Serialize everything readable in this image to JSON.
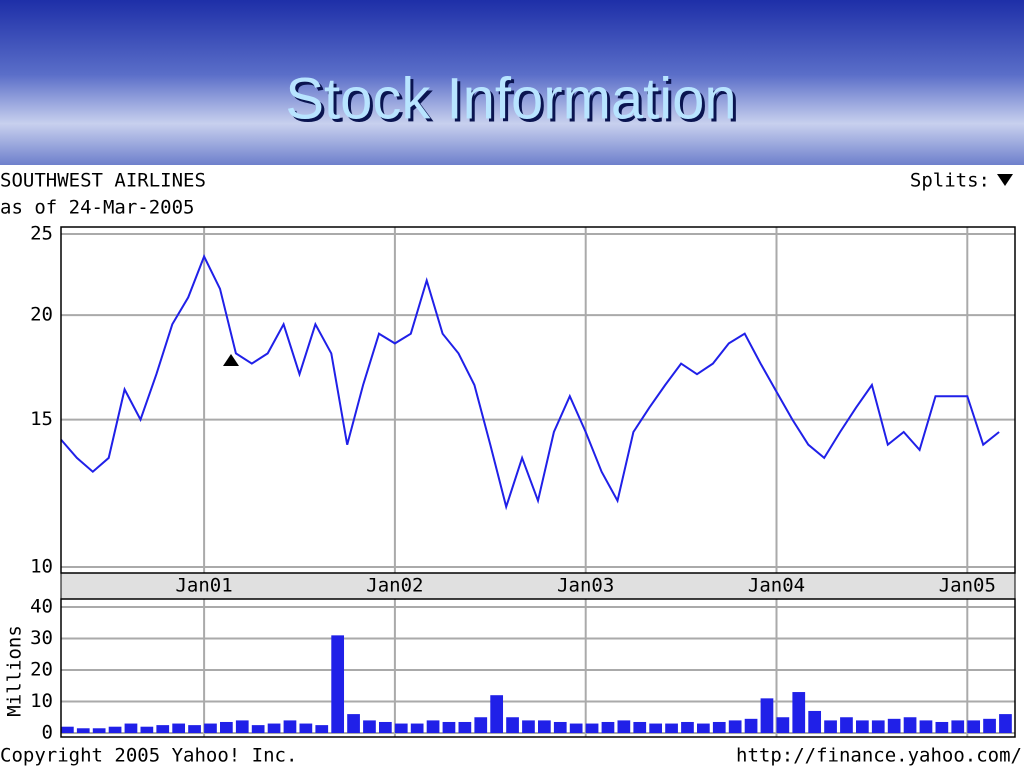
{
  "header": {
    "title": "Stock Information"
  },
  "quote": {
    "company": "SOUTHWEST AIRLINES",
    "as_of": "as of 24-Mar-2005",
    "splits": "Splits:"
  },
  "footer": {
    "copyright": "Copyright 2005 Yahoo! Inc.",
    "url": "http://finance.yahoo.com/"
  },
  "chart_data": [
    {
      "type": "line",
      "color": "#2020e8",
      "log_scale": true,
      "grid": true,
      "x": [
        "2000-04",
        "2000-05",
        "2000-06",
        "2000-07",
        "2000-08",
        "2000-09",
        "2000-10",
        "2000-11",
        "2000-12",
        "2001-01",
        "2001-02",
        "2001-03",
        "2001-04",
        "2001-05",
        "2001-06",
        "2001-07",
        "2001-08",
        "2001-09",
        "2001-10",
        "2001-11",
        "2001-12",
        "2002-01",
        "2002-02",
        "2002-03",
        "2002-04",
        "2002-05",
        "2002-06",
        "2002-07",
        "2002-08",
        "2002-09",
        "2002-10",
        "2002-11",
        "2002-12",
        "2003-01",
        "2003-02",
        "2003-03",
        "2003-04",
        "2003-05",
        "2003-06",
        "2003-07",
        "2003-08",
        "2003-09",
        "2003-10",
        "2003-11",
        "2003-12",
        "2004-01",
        "2004-02",
        "2004-03",
        "2004-04",
        "2004-05",
        "2004-06",
        "2004-07",
        "2004-08",
        "2004-09",
        "2004-10",
        "2004-11",
        "2004-12",
        "2005-01",
        "2005-02",
        "2005-03"
      ],
      "values": [
        14.2,
        13.5,
        13,
        13.5,
        16.3,
        15,
        17,
        19.5,
        21,
        23.5,
        21.5,
        18,
        17.5,
        18,
        19.5,
        17,
        19.5,
        18,
        14,
        16.5,
        19,
        18.5,
        19,
        22,
        19,
        18,
        16.5,
        14,
        11.8,
        13.5,
        12,
        14.5,
        16,
        14.5,
        13,
        12,
        14.5,
        15.5,
        16.5,
        17.5,
        17,
        17.5,
        18.5,
        19,
        17.5,
        16.2,
        15,
        14,
        13.5,
        14.5,
        15.5,
        16.5,
        14,
        14.5,
        13.8,
        16,
        16,
        16,
        14,
        14.5
      ],
      "xlim": [
        "2000-04",
        "2005-04"
      ],
      "xticks": [
        {
          "value": "2001-01",
          "label": "Jan01"
        },
        {
          "value": "2002-01",
          "label": "Jan02"
        },
        {
          "value": "2003-01",
          "label": "Jan03"
        },
        {
          "value": "2004-01",
          "label": "Jan04"
        },
        {
          "value": "2005-01",
          "label": "Jan05"
        }
      ],
      "ylim": [
        10,
        25
      ],
      "yticks": [
        10,
        15,
        20,
        25
      ]
    },
    {
      "type": "bar",
      "color": "#2020e8",
      "grid": true,
      "y_label": "Millions",
      "x": [
        "2000-04",
        "2000-05",
        "2000-06",
        "2000-07",
        "2000-08",
        "2000-09",
        "2000-10",
        "2000-11",
        "2000-12",
        "2001-01",
        "2001-02",
        "2001-03",
        "2001-04",
        "2001-05",
        "2001-06",
        "2001-07",
        "2001-08",
        "2001-09",
        "2001-10",
        "2001-11",
        "2001-12",
        "2002-01",
        "2002-02",
        "2002-03",
        "2002-04",
        "2002-05",
        "2002-06",
        "2002-07",
        "2002-08",
        "2002-09",
        "2002-10",
        "2002-11",
        "2002-12",
        "2003-01",
        "2003-02",
        "2003-03",
        "2003-04",
        "2003-05",
        "2003-06",
        "2003-07",
        "2003-08",
        "2003-09",
        "2003-10",
        "2003-11",
        "2003-12",
        "2004-01",
        "2004-02",
        "2004-03",
        "2004-04",
        "2004-05",
        "2004-06",
        "2004-07",
        "2004-08",
        "2004-09",
        "2004-10",
        "2004-11",
        "2004-12",
        "2005-01",
        "2005-02",
        "2005-03"
      ],
      "values": [
        2,
        1.5,
        1.5,
        2,
        3,
        2,
        2.5,
        3,
        2.5,
        3,
        3.5,
        4,
        2.5,
        3,
        4,
        3,
        2.5,
        31,
        6,
        4,
        3.5,
        3,
        3,
        4,
        3.5,
        3.5,
        5,
        12,
        5,
        4,
        4,
        3.5,
        3,
        3,
        3.5,
        4,
        3.5,
        3,
        3,
        3.5,
        3,
        3.5,
        4,
        4.5,
        11,
        5,
        13,
        7,
        4,
        5,
        4,
        4,
        4.5,
        5,
        4,
        3.5,
        4,
        4,
        4.5,
        6
      ],
      "xlim": [
        "2000-04",
        "2005-04"
      ],
      "xticks": [
        "2001-01",
        "2002-01",
        "2003-01",
        "2004-01",
        "2005-01"
      ],
      "ylim": [
        0,
        40
      ],
      "yticks": [
        0,
        10,
        20,
        30,
        40
      ]
    }
  ]
}
